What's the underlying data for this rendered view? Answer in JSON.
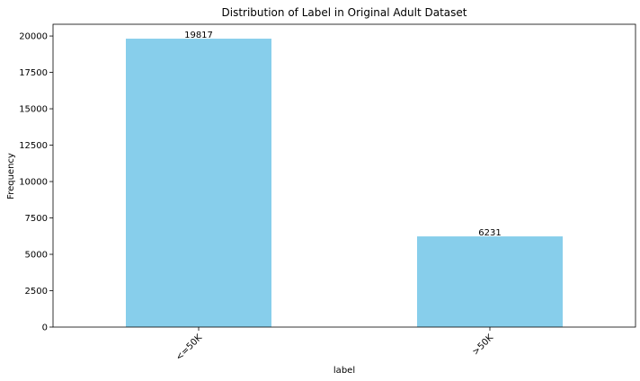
{
  "chart_data": {
    "type": "bar",
    "title": "Distribution of Label in Original Adult Dataset",
    "xlabel": "label",
    "ylabel": "Frequency",
    "categories": [
      "<=50K",
      ">50K"
    ],
    "values": [
      19817,
      6231
    ],
    "data_labels": [
      "19817",
      "6231"
    ],
    "yticks": [
      0,
      2500,
      5000,
      7500,
      10000,
      12500,
      15000,
      17500,
      20000
    ],
    "ylim": [
      0,
      20807
    ],
    "grid": false,
    "legend": "none",
    "bar_color": "#87ceeb",
    "xtick_rotation": 45
  }
}
